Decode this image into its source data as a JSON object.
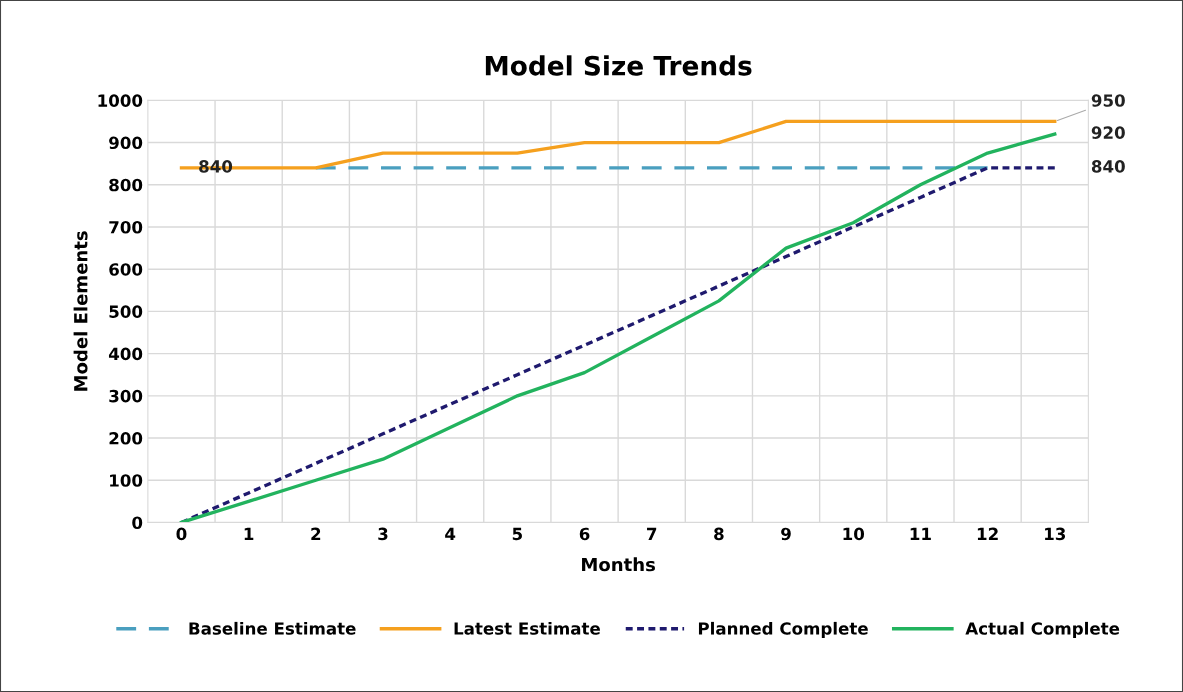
{
  "chart_data": {
    "type": "line",
    "title": "Model Size Trends",
    "xlabel": "Months",
    "ylabel": "Model Elements",
    "categories": [
      "0",
      "1",
      "2",
      "3",
      "4",
      "5",
      "6",
      "7",
      "8",
      "9",
      "10",
      "11",
      "12",
      "13"
    ],
    "series": [
      {
        "name": "Baseline Estimate",
        "color": "#4a9fbf",
        "line_style": "dashed",
        "values": [
          null,
          null,
          840,
          840,
          840,
          840,
          840,
          840,
          840,
          840,
          840,
          840,
          840,
          null
        ]
      },
      {
        "name": "Latest Estimate",
        "color": "#f5a01e",
        "line_style": "solid",
        "values": [
          840,
          840,
          840,
          875,
          875,
          875,
          900,
          900,
          900,
          950,
          950,
          950,
          950,
          950
        ]
      },
      {
        "name": "Planned Complete",
        "color": "#1f1a6e",
        "line_style": "dotted",
        "values": [
          0,
          70,
          140,
          210,
          280,
          350,
          420,
          490,
          560,
          630,
          700,
          770,
          840,
          840
        ]
      },
      {
        "name": "Actual Complete",
        "color": "#22b35e",
        "line_style": "solid",
        "values": [
          0,
          50,
          100,
          150,
          225,
          300,
          355,
          440,
          525,
          650,
          710,
          800,
          875,
          920
        ]
      }
    ],
    "annotations": [
      {
        "text": "840",
        "x": "0",
        "y": 840
      },
      {
        "text": "950",
        "x": "13",
        "y": 950
      },
      {
        "text": "920",
        "x": "13",
        "y": 920
      },
      {
        "text": "840",
        "x": "13",
        "y": 840
      }
    ],
    "ylim": [
      0,
      1000
    ],
    "yticks": [
      0,
      100,
      200,
      300,
      400,
      500,
      600,
      700,
      800,
      900,
      1000
    ],
    "grid": true,
    "legend": "bottom",
    "marker": "none"
  }
}
